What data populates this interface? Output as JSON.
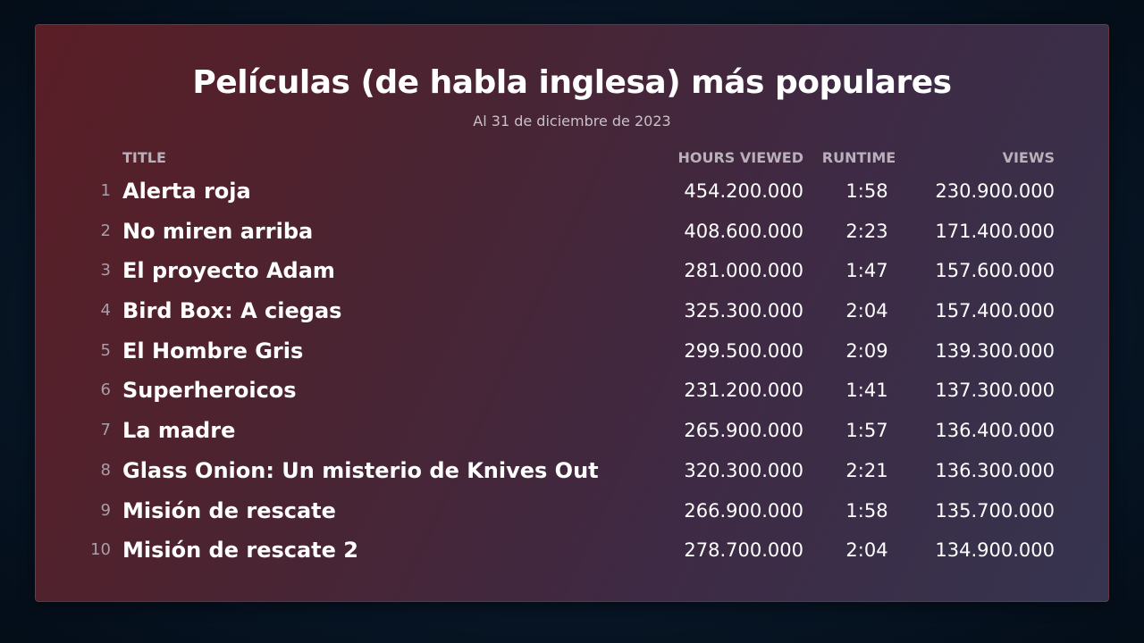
{
  "header": {
    "title": "Películas (de habla inglesa) más populares",
    "subtitle": "Al 31 de diciembre de 2023"
  },
  "columns": {
    "title": "TITLE",
    "hours_viewed": "HOURS VIEWED",
    "runtime": "RUNTIME",
    "views": "VIEWS"
  },
  "rows": [
    {
      "rank": "1",
      "title": "Alerta roja",
      "hours": "454.200.000",
      "runtime": "1:58",
      "views": "230.900.000"
    },
    {
      "rank": "2",
      "title": "No miren arriba",
      "hours": "408.600.000",
      "runtime": "2:23",
      "views": "171.400.000"
    },
    {
      "rank": "3",
      "title": "El proyecto Adam",
      "hours": "281.000.000",
      "runtime": "1:47",
      "views": "157.600.000"
    },
    {
      "rank": "4",
      "title": "Bird Box: A ciegas",
      "hours": "325.300.000",
      "runtime": "2:04",
      "views": "157.400.000"
    },
    {
      "rank": "5",
      "title": "El Hombre Gris",
      "hours": "299.500.000",
      "runtime": "2:09",
      "views": "139.300.000"
    },
    {
      "rank": "6",
      "title": "Superheroicos",
      "hours": "231.200.000",
      "runtime": "1:41",
      "views": "137.300.000"
    },
    {
      "rank": "7",
      "title": "La madre",
      "hours": "265.900.000",
      "runtime": "1:57",
      "views": "136.400.000"
    },
    {
      "rank": "8",
      "title": "Glass Onion: Un misterio de Knives Out",
      "hours": "320.300.000",
      "runtime": "2:21",
      "views": "136.300.000"
    },
    {
      "rank": "9",
      "title": "Misión de rescate",
      "hours": "266.900.000",
      "runtime": "1:58",
      "views": "135.700.000"
    },
    {
      "rank": "10",
      "title": "Misión de rescate 2",
      "hours": "278.700.000",
      "runtime": "2:04",
      "views": "134.900.000"
    }
  ],
  "colors": {
    "background": "#071626",
    "card_start": "#5a1e26",
    "card_end": "#36344f",
    "header_text": "#b9b0ba",
    "rank_text": "#a89fab"
  }
}
